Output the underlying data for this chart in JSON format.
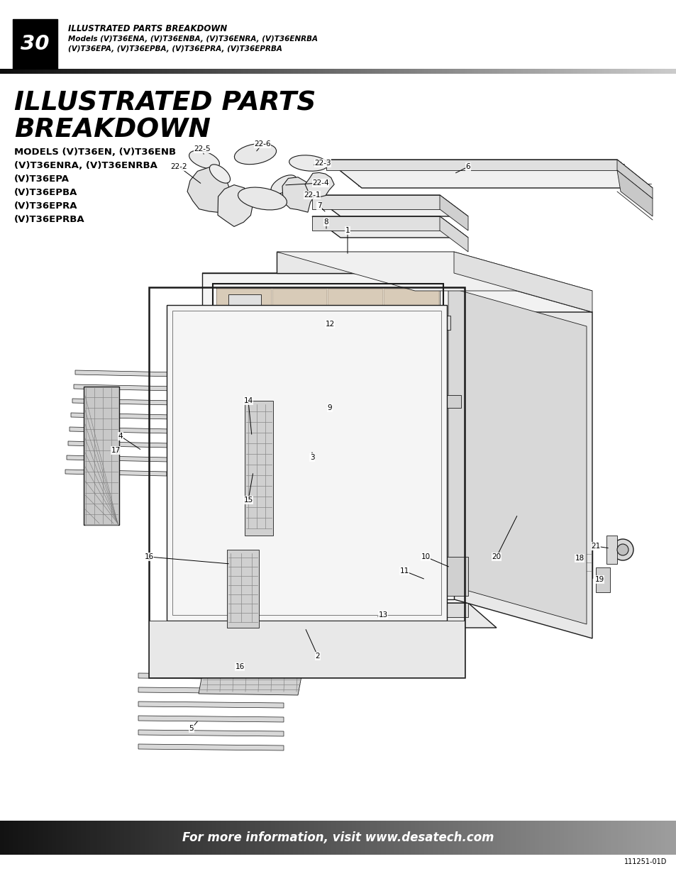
{
  "page_number": "30",
  "header_title": "ILLUSTRATED PARTS BREAKDOWN",
  "header_subtitle1": "Models (V)T36ENA, (V)T36ENBA, (V)T36ENRA, (V)T36ENRBA",
  "header_subtitle2": "(V)T36EPA, (V)T36EPBA, (V)T36EPRA, (V)T36EPRBA",
  "section_title_line1": "ILLUSTRATED PARTS",
  "section_title_line2": "BREAKDOWN",
  "models_lines": [
    "MODELS (V)T36EN, (V)T36ENB",
    "(V)T36ENRA, (V)T36ENRBA",
    "(V)T36EPA",
    "(V)T36EPBA",
    "(V)T36EPRA",
    "(V)T36EPRBA"
  ],
  "footer_text": "For more information, visit www.desatech.com",
  "footer_code": "111251-01D",
  "bg_color": "#ffffff"
}
